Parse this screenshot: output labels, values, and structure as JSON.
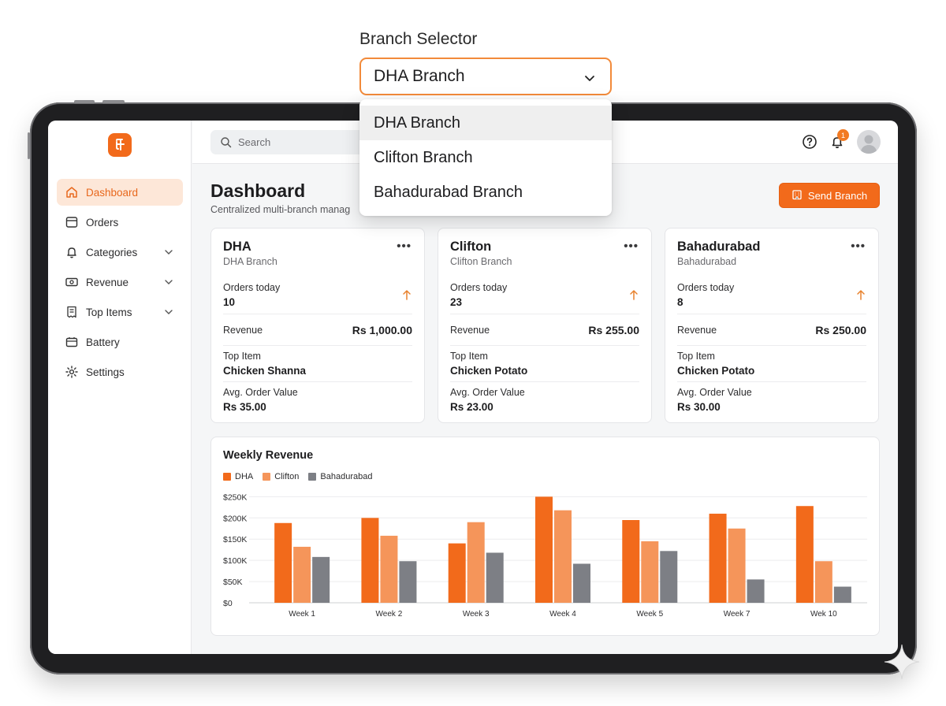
{
  "selector": {
    "label": "Branch Selector",
    "value": "DHA Branch",
    "options": [
      "DHA Branch",
      "Clifton Branch",
      "Bahadurabad Branch"
    ]
  },
  "sidebar": {
    "items": [
      {
        "label": "Dashboard",
        "icon": "home-icon"
      },
      {
        "label": "Orders",
        "icon": "orders-icon"
      },
      {
        "label": "Categories",
        "icon": "bell-icon"
      },
      {
        "label": "Revenue",
        "icon": "cash-icon"
      },
      {
        "label": "Top Items",
        "icon": "receipt-icon"
      },
      {
        "label": "Battery",
        "icon": "battery-icon"
      },
      {
        "label": "Settings",
        "icon": "gear-icon"
      }
    ]
  },
  "topbar": {
    "search_placeholder": "Search",
    "notification_count": "1"
  },
  "header": {
    "title": "Dashboard",
    "subtitle": "Centralized multi-branch manag",
    "send_button": "Send Branch"
  },
  "cards": [
    {
      "title": "DHA",
      "subtitle": "DHA Branch",
      "orders_label": "Orders today",
      "orders": "10",
      "revenue_label": "Revenue",
      "revenue": "Rs 1,000.00",
      "top_item_label": "Top Item",
      "top_item": "Chicken Shanna",
      "aov_label": "Avg. Order Value",
      "aov": "Rs 35.00"
    },
    {
      "title": "Clifton",
      "subtitle": "Clifton Branch",
      "orders_label": "Orders today",
      "orders": "23",
      "revenue_label": "Revenue",
      "revenue": "Rs 255.00",
      "top_item_label": "Top Item",
      "top_item": "Chicken Potato",
      "aov_label": "Avg. Order Value",
      "aov": "Rs 23.00"
    },
    {
      "title": "Bahadurabad",
      "subtitle": "Bahadurabad",
      "orders_label": "Orders today",
      "orders": "8",
      "revenue_label": "Revenue",
      "revenue": "Rs 250.00",
      "top_item_label": "Top Item",
      "top_item": "Chicken Potato",
      "aov_label": "Avg. Order Value",
      "aov": "Rs 30.00"
    }
  ],
  "colors": {
    "accent": "#f26a1b",
    "dha": "#f26a1b",
    "clifton": "#f5955a",
    "bahadurabad": "#7d7f85"
  },
  "chart_data": {
    "type": "bar",
    "title": "Weekly Revenue",
    "categories": [
      "Week 1",
      "Week 2",
      "Week 3",
      "Week 4",
      "Week 5",
      "Week 7",
      "Wek 10"
    ],
    "series": [
      {
        "name": "DHA",
        "values": [
          188000,
          200000,
          140000,
          250000,
          195000,
          210000,
          228000
        ]
      },
      {
        "name": "Clifton",
        "values": [
          132000,
          158000,
          190000,
          218000,
          145000,
          175000,
          98000
        ]
      },
      {
        "name": "Bahadurabad",
        "values": [
          108000,
          98000,
          118000,
          92000,
          122000,
          55000,
          38000
        ]
      }
    ],
    "y_ticks": [
      "$0",
      "$50K",
      "$100K",
      "$150K",
      "$200K",
      "$250K"
    ],
    "y_tick_values": [
      0,
      50000,
      100000,
      150000,
      200000,
      250000
    ],
    "ylim": [
      0,
      260000
    ],
    "legend": "top-left",
    "grid": true
  }
}
